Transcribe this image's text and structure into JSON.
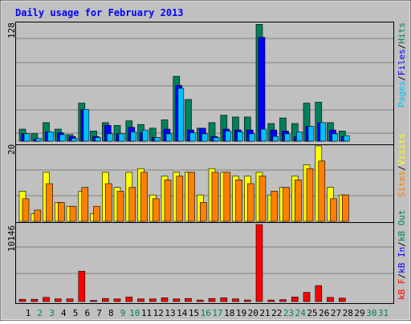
{
  "chart_data": [
    {
      "panel": "hits-files-pages",
      "type": "bar",
      "title": "Daily usage for February 2013",
      "categories": [
        "1",
        "2",
        "3",
        "4",
        "5",
        "6",
        "7",
        "8",
        "9",
        "10",
        "11",
        "12",
        "13",
        "14",
        "15",
        "16",
        "17",
        "18",
        "19",
        "20",
        "21",
        "22",
        "23",
        "24",
        "25",
        "26",
        "27",
        "28",
        "29",
        "30",
        "31"
      ],
      "ymax_label": "128",
      "ylim": [
        0,
        128
      ],
      "right_labels": [
        {
          "text": "Pages",
          "color": "#00c0ff"
        },
        {
          "text": "/",
          "color": "#000000"
        },
        {
          "text": "Files",
          "color": "#0000ff"
        },
        {
          "text": "/",
          "color": "#000000"
        },
        {
          "text": "Hits",
          "color": "#00805c"
        }
      ],
      "series": [
        {
          "name": "Hits",
          "color": "#00805c",
          "values": [
            13,
            8,
            20,
            13,
            7,
            41,
            11,
            20,
            17,
            22,
            18,
            14,
            23,
            70,
            45,
            14,
            20,
            28,
            26,
            26,
            126,
            19,
            25,
            19,
            41,
            42,
            20,
            11,
            0,
            0,
            0
          ]
        },
        {
          "name": "Files",
          "color": "#0000ff",
          "values": [
            8,
            2,
            10,
            9,
            5,
            34,
            5,
            17,
            8,
            15,
            9,
            4,
            13,
            60,
            12,
            14,
            5,
            13,
            12,
            12,
            112,
            12,
            11,
            5,
            16,
            20,
            12,
            5,
            0,
            0,
            0
          ]
        },
        {
          "name": "Pages",
          "color": "#00c0ff",
          "values": [
            8,
            3,
            10,
            7,
            3,
            34,
            4,
            8,
            8,
            10,
            12,
            4,
            8,
            57,
            9,
            8,
            4,
            11,
            10,
            8,
            13,
            5,
            8,
            10,
            16,
            20,
            8,
            6,
            0,
            0,
            0
          ]
        }
      ]
    },
    {
      "panel": "visits-sites",
      "type": "bar",
      "ymax_label": "20",
      "ylim": [
        0,
        20
      ],
      "right_labels": [
        {
          "text": "Sites",
          "color": "#ff8000"
        },
        {
          "text": "/",
          "color": "#000000"
        },
        {
          "text": "Visits",
          "color": "#ffff00"
        }
      ],
      "series": [
        {
          "name": "Visits",
          "color": "#ffff00",
          "values": [
            8,
            2,
            13,
            5,
            4,
            8,
            2,
            13,
            9,
            13,
            14,
            7,
            12,
            13,
            13,
            7,
            14,
            13,
            12,
            12,
            13,
            7,
            9,
            12,
            15,
            20,
            9,
            7,
            0,
            0,
            0
          ]
        },
        {
          "name": "Sites",
          "color": "#ff8000",
          "values": [
            6,
            3,
            10,
            5,
            4,
            9,
            4,
            10,
            8,
            9,
            13,
            6,
            11,
            12,
            13,
            5,
            13,
            13,
            11,
            10,
            12,
            8,
            9,
            11,
            14,
            16,
            6,
            7,
            0,
            0,
            0
          ]
        }
      ]
    },
    {
      "panel": "kbytes",
      "type": "bar",
      "ymax_label": "10146",
      "ylim": [
        0,
        10146
      ],
      "right_labels": [
        {
          "text": "kB F",
          "color": "#ff0000"
        },
        {
          "text": "/",
          "color": "#000000"
        },
        {
          "text": "kB In",
          "color": "#0000ff"
        },
        {
          "text": "/",
          "color": "#000000"
        },
        {
          "text": "kB Out",
          "color": "#00805c"
        }
      ],
      "series": [
        {
          "name": "kB F",
          "color": "#ff0000",
          "values": [
            300,
            300,
            550,
            350,
            350,
            4000,
            150,
            400,
            350,
            600,
            350,
            350,
            500,
            350,
            400,
            200,
            400,
            500,
            350,
            200,
            10146,
            200,
            250,
            600,
            1200,
            2100,
            550,
            450,
            0,
            0,
            0
          ]
        }
      ]
    }
  ],
  "x_axis": {
    "labels": [
      "1",
      "2",
      "3",
      "4",
      "5",
      "6",
      "7",
      "8",
      "9",
      "10",
      "11",
      "12",
      "13",
      "14",
      "15",
      "16",
      "17",
      "18",
      "19",
      "20",
      "21",
      "22",
      "23",
      "24",
      "25",
      "26",
      "27",
      "28",
      "29",
      "30",
      "31"
    ],
    "weekend_color": "#00805c",
    "weekday_color": "#000000",
    "weekend_days": [
      2,
      3,
      9,
      10,
      16,
      17,
      23,
      24,
      30,
      31
    ]
  },
  "colors": {
    "background": "#c0c0c0",
    "plot_background": "#c0c0c0",
    "grid": "#808080",
    "title": "#0000ff"
  }
}
